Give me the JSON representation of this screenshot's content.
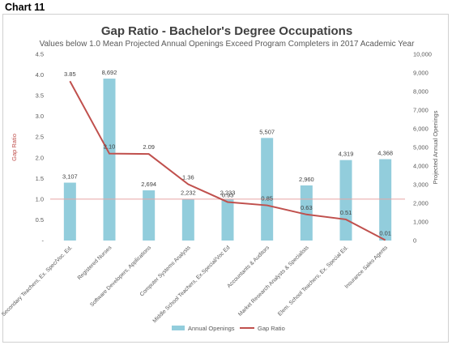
{
  "page": {
    "heading": "Chart 11"
  },
  "chart_data": {
    "type": "bar+line",
    "title": "Gap Ratio - Bachelor's Degree Occupations",
    "subtitle": "Values below 1.0 Mean Projected Annual Openings Exceed Program Completers in 2017 Academic Year",
    "categories": [
      "Secondary Teachers, Ex. Spec/Voc. Ed.",
      "Registered Nurses",
      "Software Developers, Applications",
      "Computer Systems Analysts",
      "Middle School Teachers, Ex.Special/Voc Ed",
      "Accountants & Auditors",
      "Market Research Analysts & Specialists",
      "Elem. School Teachers, Ex. Special Ed.",
      "Insurance Sales Agents"
    ],
    "series": [
      {
        "name": "Annual Openings",
        "type": "bar",
        "axis": "right",
        "color": "#92cddc",
        "values": [
          3107,
          8692,
          2694,
          2232,
          2233,
          5507,
          2960,
          4319,
          4368
        ],
        "labels": [
          "3,107",
          "8,692",
          "2,694",
          "2,232",
          "2,233",
          "5,507",
          "2,960",
          "4,319",
          "4,368"
        ]
      },
      {
        "name": "Gap Ratio",
        "type": "line",
        "axis": "left",
        "color": "#c0504d",
        "values": [
          3.85,
          2.1,
          2.09,
          1.36,
          0.93,
          0.85,
          0.63,
          0.51,
          0.01
        ],
        "labels": [
          "3.85",
          "2.10",
          "2.09",
          "1.36",
          "0.93",
          "0.85",
          "0.63",
          "0.51",
          "0.01"
        ]
      }
    ],
    "reference_line": {
      "value": 1.0,
      "axis": "left",
      "color": "#e6a5a4"
    },
    "y_left": {
      "label": "Gap Ratio",
      "label_color": "#c0504d",
      "range": [
        0,
        4.5
      ],
      "ticks": [
        "-",
        "0.5",
        "1.0",
        "1.5",
        "2.0",
        "2.5",
        "3.0",
        "3.5",
        "4.0",
        "4.5"
      ]
    },
    "y_right": {
      "label": "Projected Annual Openings",
      "label_color": "#595959",
      "range": [
        0,
        10000
      ],
      "ticks": [
        "0",
        "1,000",
        "2,000",
        "3,000",
        "4,000",
        "5,000",
        "6,000",
        "7,000",
        "8,000",
        "9,000",
        "10,000"
      ]
    },
    "grid": false,
    "legend": {
      "position": "bottom",
      "items": [
        "Annual Openings",
        "Gap Ratio"
      ]
    }
  }
}
